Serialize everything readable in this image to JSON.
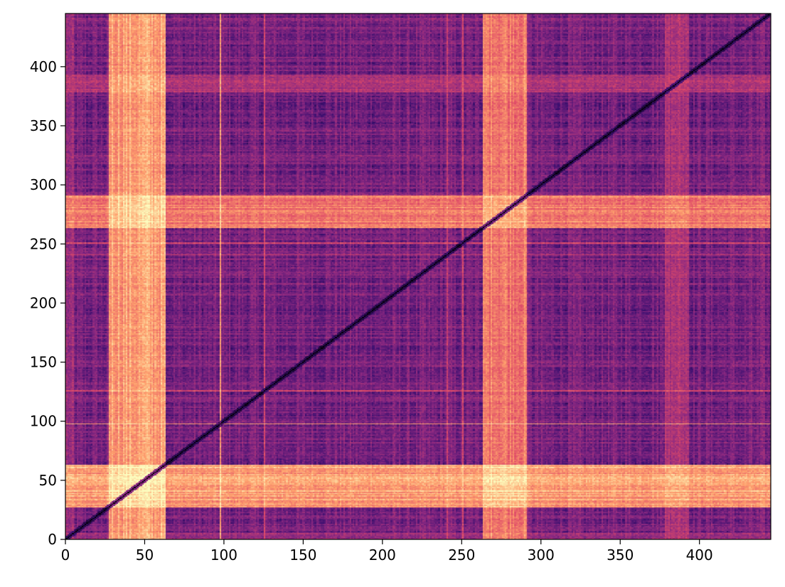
{
  "chart_data": {
    "type": "heatmap",
    "title": "",
    "xlabel": "",
    "ylabel": "",
    "xlim": [
      0,
      445
    ],
    "ylim": [
      0,
      445
    ],
    "x_ticks": [
      0,
      50,
      100,
      150,
      200,
      250,
      300,
      350,
      400
    ],
    "y_ticks": [
      0,
      50,
      100,
      150,
      200,
      250,
      300,
      350,
      400
    ],
    "x_tick_labels": [
      "0",
      "50",
      "100",
      "150",
      "200",
      "250",
      "300",
      "350",
      "400"
    ],
    "y_tick_labels": [
      "0",
      "50",
      "100",
      "150",
      "200",
      "250",
      "300",
      "350",
      "400"
    ],
    "colormap": "magma",
    "colormap_stops": [
      "#000004",
      "#3b0f70",
      "#8c2981",
      "#de4968",
      "#fe9f6d",
      "#fcfdbf"
    ],
    "diagonal": "zero (dark) along x = y",
    "grid": false,
    "bright_bands": [
      {
        "from": 27,
        "to": 62,
        "level": 0.9
      },
      {
        "from": 263,
        "to": 290,
        "level": 0.8
      },
      {
        "from": 378,
        "to": 392,
        "level": 0.5
      },
      {
        "from": 0,
        "to": 4,
        "level": 0.45
      }
    ],
    "thin_lines": [
      {
        "at": 97,
        "level": 0.85
      },
      {
        "at": 125,
        "level": 0.6
      },
      {
        "at": 240,
        "level": 0.55
      },
      {
        "at": 250,
        "level": 0.6
      },
      {
        "at": 270,
        "level": 0.75
      }
    ]
  }
}
